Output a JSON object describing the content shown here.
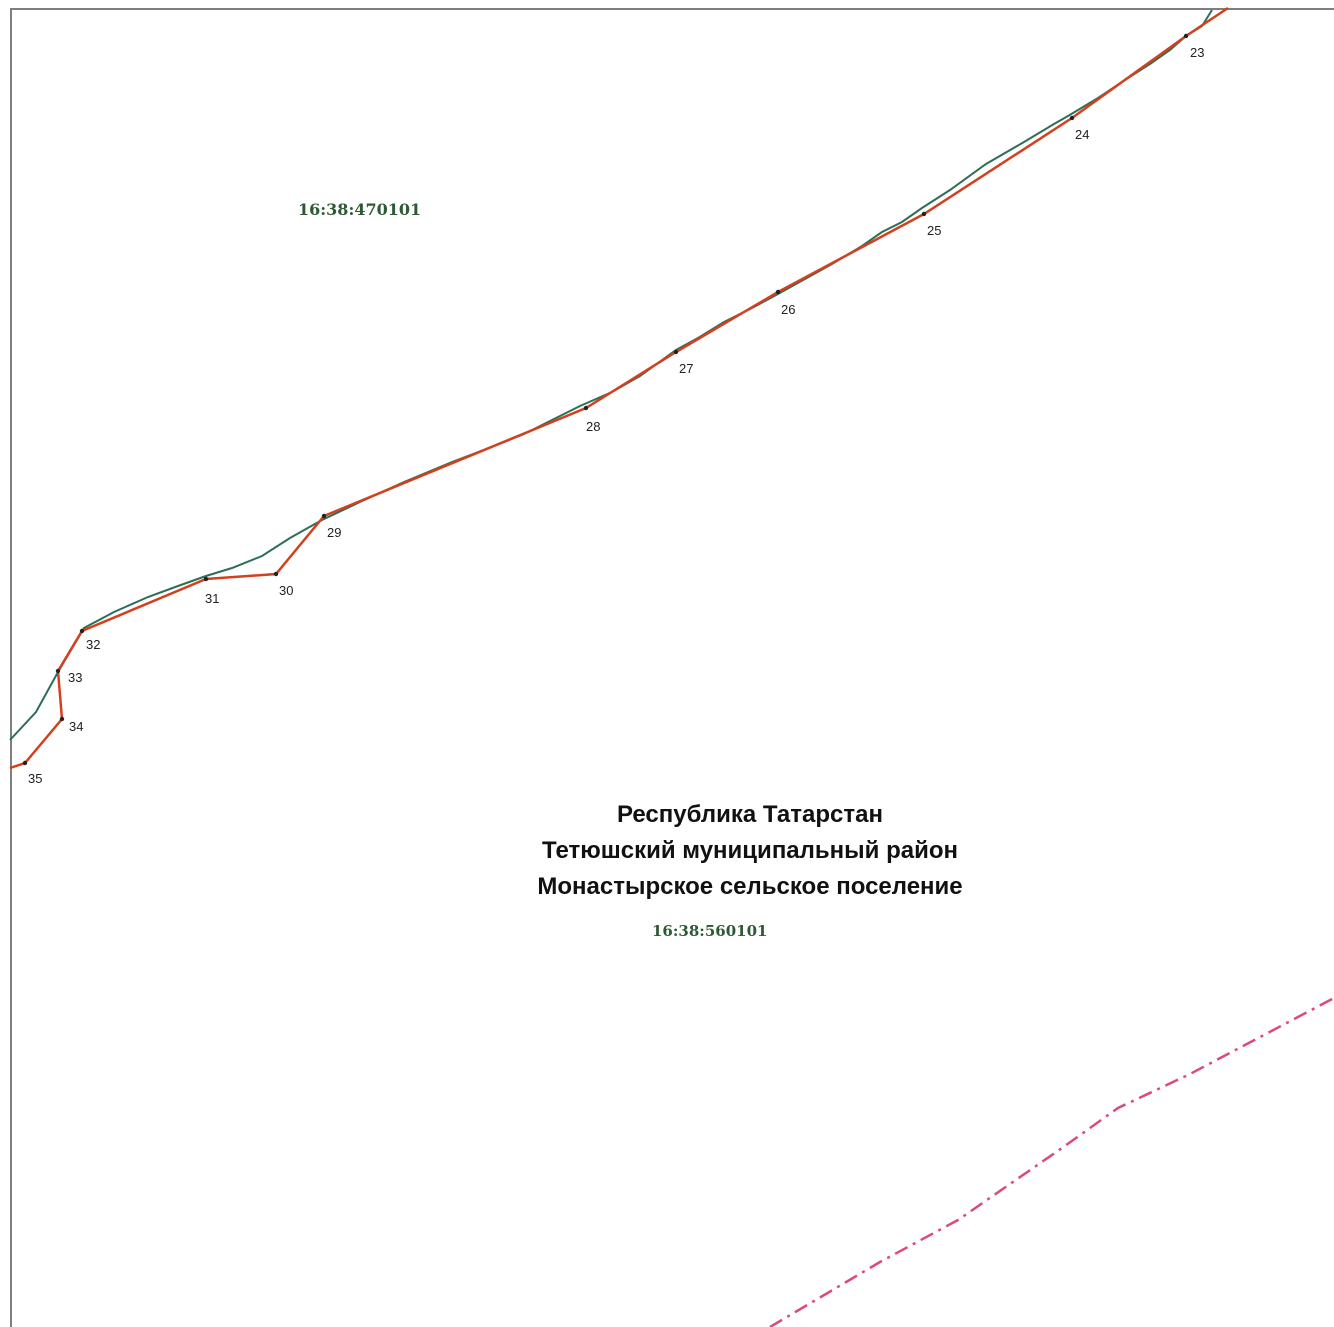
{
  "map": {
    "cadastral_north": "16:38:470101",
    "cadastral_south": "16:38:560101",
    "admin_lines": [
      "Республика Татарстан",
      "Тетюшский муниципальный район",
      "Монастырское сельское поселение"
    ],
    "boundary_points": [
      "23",
      "24",
      "25",
      "26",
      "27",
      "28",
      "29",
      "30",
      "31",
      "32",
      "33",
      "34",
      "35"
    ],
    "colors": {
      "boundary_red": "#d2401f",
      "quarter_green": "#2f6e55",
      "label_green": "#2d5a34",
      "dash_pink": "#dc4a78",
      "frame_gray": "#7f7f7f"
    }
  }
}
